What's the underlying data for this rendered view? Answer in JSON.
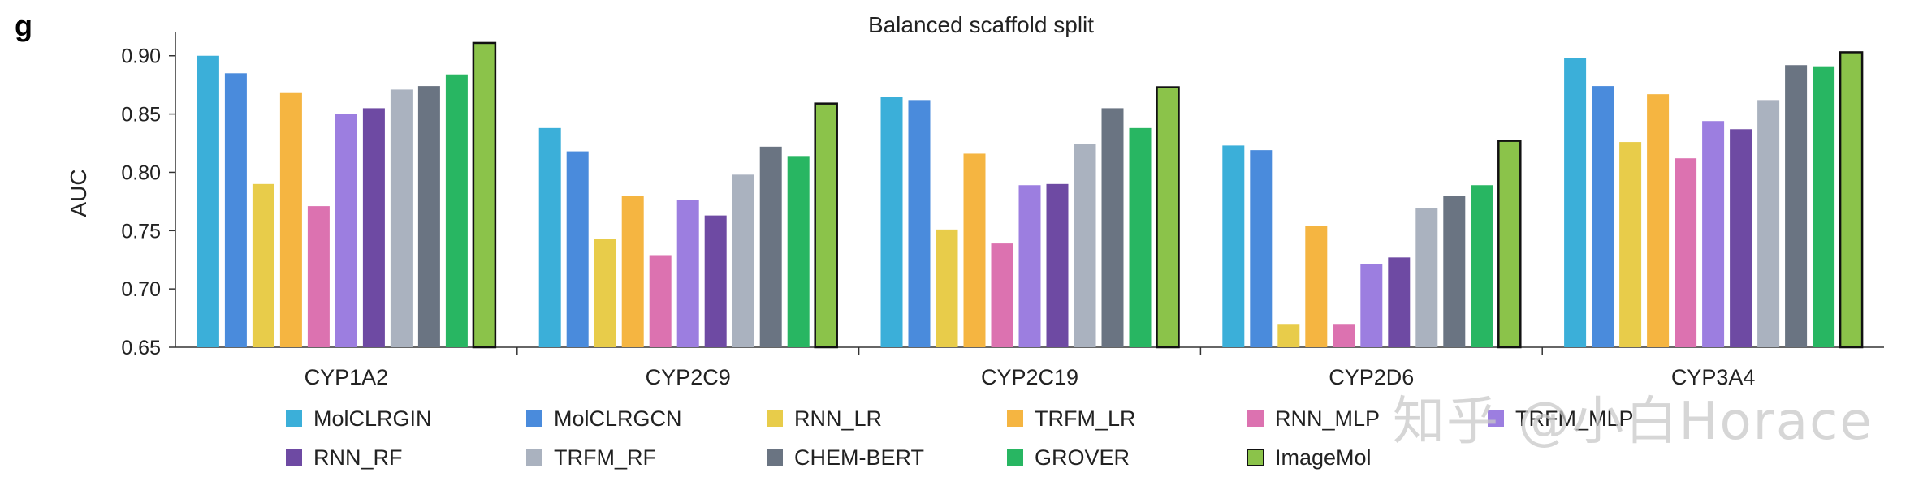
{
  "panel_label": "g",
  "watermark": "知乎 @小白Horace",
  "chart_data": {
    "type": "bar",
    "title": "Balanced scaffold split",
    "xlabel": "",
    "ylabel": "AUC",
    "ylim": [
      0.65,
      0.92
    ],
    "yticks": [
      "0.65",
      "0.70",
      "0.75",
      "0.80",
      "0.85",
      "0.90"
    ],
    "grid": false,
    "legend_position": "bottom",
    "categories": [
      "CYP1A2",
      "CYP2C9",
      "CYP2C19",
      "CYP2D6",
      "CYP3A4"
    ],
    "highlight_series": "ImageMol",
    "series": [
      {
        "name": "MolCLRGIN",
        "color": "#3bafd9",
        "values": [
          0.9,
          0.838,
          0.865,
          0.823,
          0.898
        ]
      },
      {
        "name": "MolCLRGCN",
        "color": "#4a8bdc",
        "values": [
          0.885,
          0.818,
          0.862,
          0.819,
          0.874
        ]
      },
      {
        "name": "RNN_LR",
        "color": "#e8cc4a",
        "values": [
          0.79,
          0.743,
          0.751,
          0.67,
          0.826
        ]
      },
      {
        "name": "TRFM_LR",
        "color": "#f5b541",
        "values": [
          0.868,
          0.78,
          0.816,
          0.754,
          0.867
        ]
      },
      {
        "name": "RNN_MLP",
        "color": "#dc72b0",
        "values": [
          0.771,
          0.729,
          0.739,
          0.67,
          0.812
        ]
      },
      {
        "name": "TRFM_MLP",
        "color": "#9c7ee0",
        "values": [
          0.85,
          0.776,
          0.789,
          0.721,
          0.844
        ]
      },
      {
        "name": "RNN_RF",
        "color": "#6e4aa3",
        "values": [
          0.855,
          0.763,
          0.79,
          0.727,
          0.837
        ]
      },
      {
        "name": "TRFM_RF",
        "color": "#aab2bf",
        "values": [
          0.871,
          0.798,
          0.824,
          0.769,
          0.862
        ]
      },
      {
        "name": "CHEM-BERT",
        "color": "#6a7482",
        "values": [
          0.874,
          0.822,
          0.855,
          0.78,
          0.892
        ]
      },
      {
        "name": "GROVER",
        "color": "#28b662",
        "values": [
          0.884,
          0.814,
          0.838,
          0.789,
          0.891
        ]
      },
      {
        "name": "ImageMol",
        "color": "#8bc34a",
        "values": [
          0.911,
          0.859,
          0.873,
          0.827,
          0.903
        ]
      }
    ]
  }
}
